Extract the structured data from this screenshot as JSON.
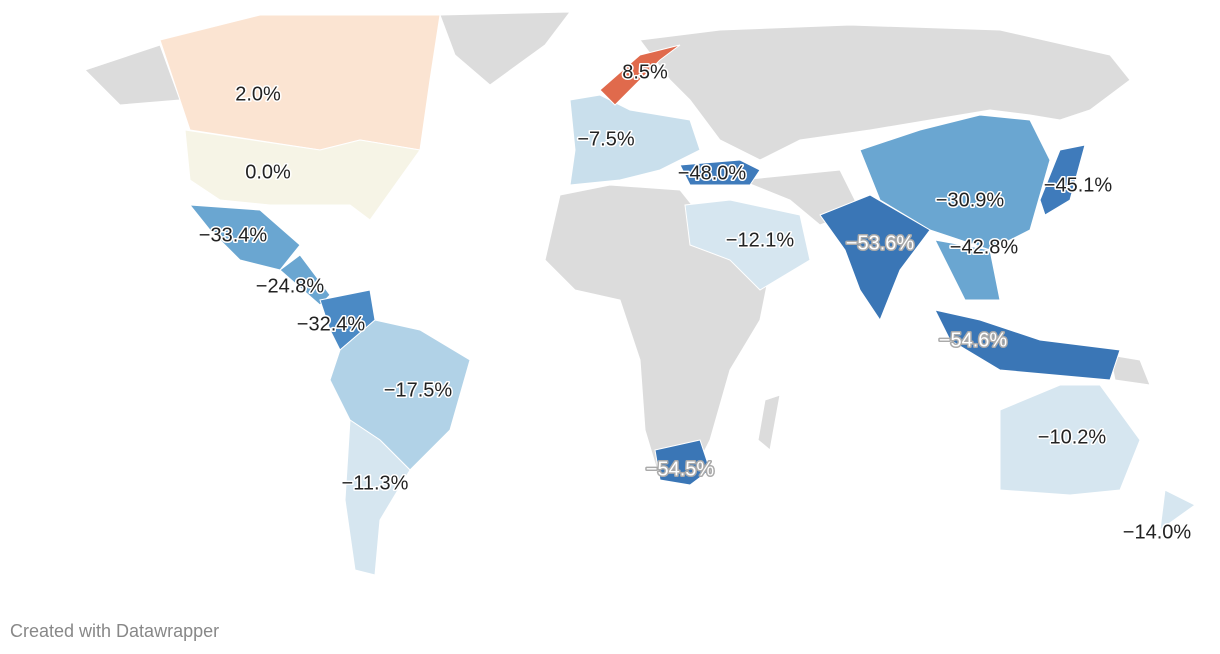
{
  "regions": [
    {
      "label": "2.0%",
      "color": "#fbe4d2"
    },
    {
      "label": "0.0%",
      "color": "#f6f4e6"
    },
    {
      "label": "8.5%",
      "color": "#e06a4c"
    },
    {
      "label": "−7.5%",
      "color": "#c9dfec"
    },
    {
      "label": "−48.0%",
      "color": "#3f7bbb"
    },
    {
      "label": "−33.4%",
      "color": "#6aa6d1"
    },
    {
      "label": "−24.8%",
      "color": "#6aa6d1"
    },
    {
      "label": "−32.4%",
      "color": "#4b8ac5"
    },
    {
      "label": "−17.5%",
      "color": "#b1d2e7"
    },
    {
      "label": "−11.3%",
      "color": "#d6e6f0"
    },
    {
      "label": "−12.1%",
      "color": "#d6e6f0"
    },
    {
      "label": "−53.6%",
      "color": "#3a76b6"
    },
    {
      "label": "−30.9%",
      "color": "#6aa6d1"
    },
    {
      "label": "−45.1%",
      "color": "#3f7bbb"
    },
    {
      "label": "−42.8%",
      "color": "#6aa6d1"
    },
    {
      "label": "−54.6%",
      "color": "#3a76b6"
    },
    {
      "label": "−54.5%",
      "color": "#3a76b6"
    },
    {
      "label": "−10.2%",
      "color": "#d6e6f0"
    },
    {
      "label": "−14.0%",
      "color": "#d6e6f0"
    }
  ],
  "footer": "Created with Datawrapper"
}
